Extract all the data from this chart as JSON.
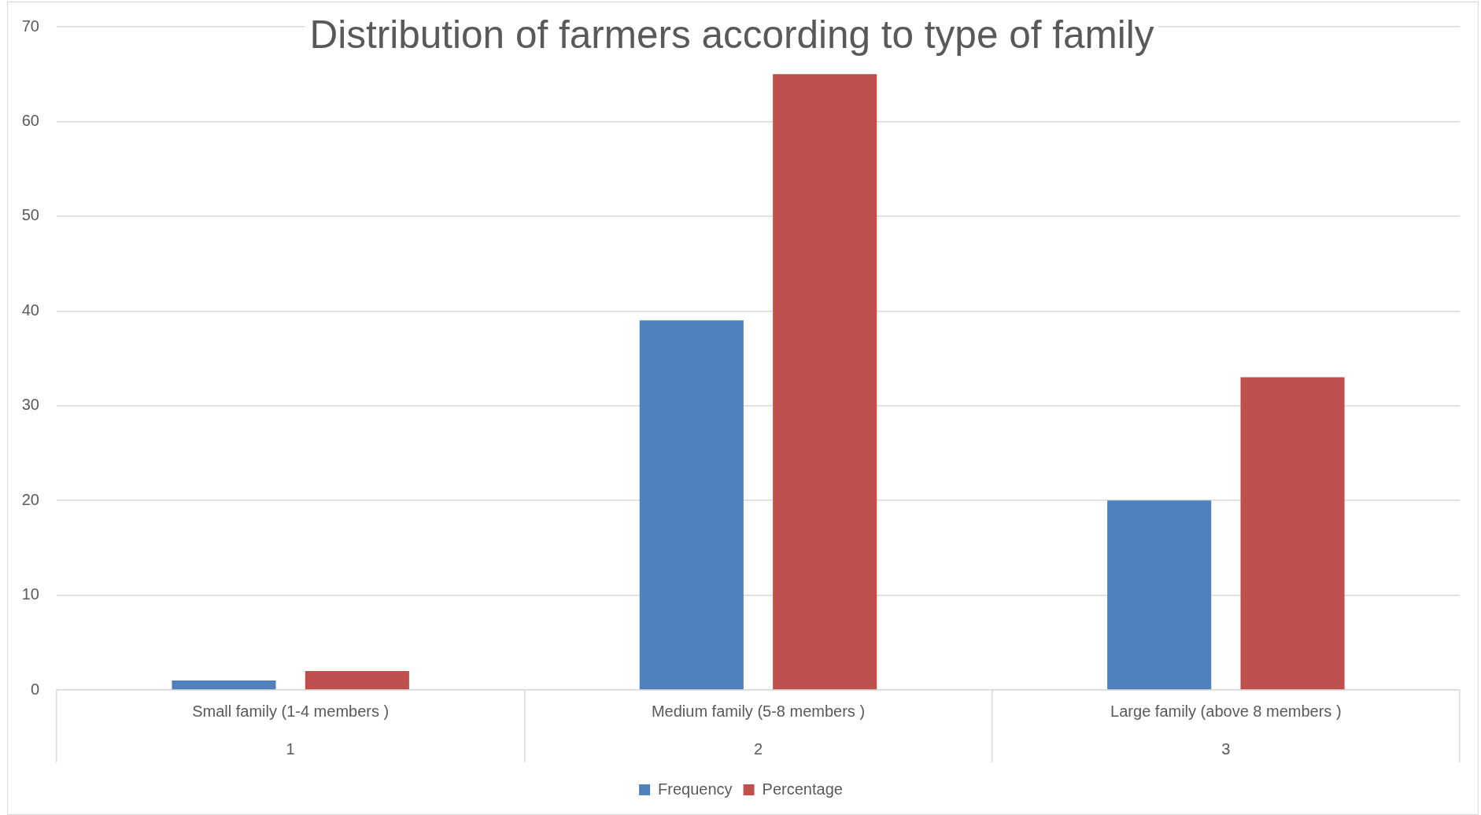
{
  "chart_data": {
    "type": "bar",
    "title": "Distribution of farmers according to type of family",
    "categories": [
      "Small family (1-4 members )",
      "Medium family (5-8 members )",
      "Large family (above 8 members )"
    ],
    "series": [
      {
        "name": "Frequency",
        "color": "#4f81bd",
        "values": [
          1,
          39,
          20
        ]
      },
      {
        "name": "Percentage",
        "color": "#c0504d",
        "values": [
          2,
          65,
          33
        ]
      }
    ],
    "ylim": [
      0,
      70
    ],
    "yticks": [
      0,
      10,
      20,
      30,
      40,
      50,
      60,
      70
    ],
    "grid": "y",
    "legend": "bottom",
    "annotations": [
      "1",
      "2",
      "3"
    ]
  }
}
